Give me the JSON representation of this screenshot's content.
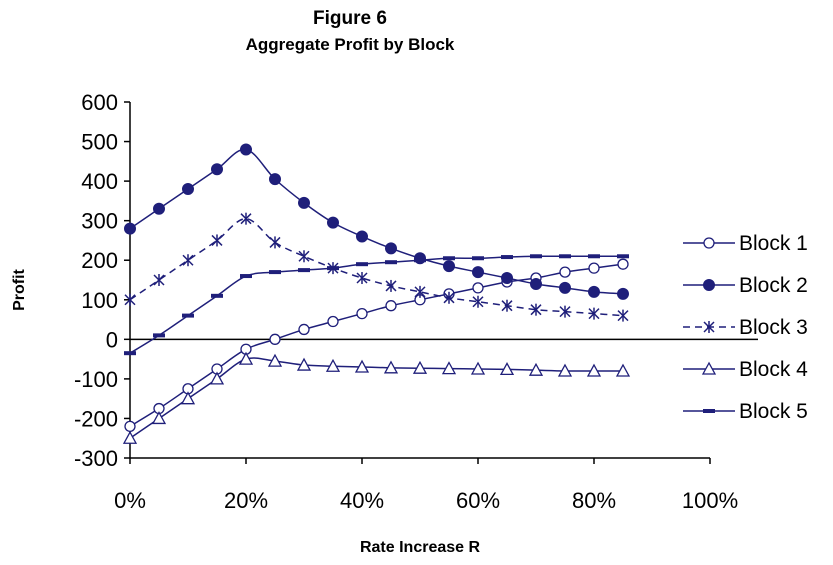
{
  "chart_data": {
    "type": "line",
    "title": "Figure 6",
    "subtitle": "Aggregate Profit by Block",
    "xlabel": "Rate Increase R",
    "ylabel": "Profit",
    "xlim": [
      0,
      100
    ],
    "ylim": [
      -300,
      600
    ],
    "x_ticks": [
      0,
      20,
      40,
      60,
      80,
      100
    ],
    "x_tick_labels": [
      "0%",
      "20%",
      "40%",
      "60%",
      "80%",
      "100%"
    ],
    "y_ticks": [
      600,
      500,
      400,
      300,
      200,
      100,
      0,
      -100,
      -200,
      -300
    ],
    "y_tick_labels": [
      "600",
      "500",
      "400",
      "300",
      "200",
      "100",
      "0",
      "-100",
      "-200",
      "-300"
    ],
    "grid": false,
    "legend_position": "right",
    "x": [
      0,
      5,
      10,
      15,
      20,
      25,
      30,
      35,
      40,
      45,
      50,
      55,
      60,
      65,
      70,
      75,
      80,
      85
    ],
    "series": [
      {
        "name": "Block 1",
        "marker": "open-circle",
        "values": [
          -220,
          -175,
          -125,
          -75,
          -25,
          0,
          25,
          45,
          65,
          85,
          100,
          115,
          130,
          145,
          155,
          170,
          180,
          190
        ]
      },
      {
        "name": "Block 2",
        "marker": "filled-circle",
        "values": [
          280,
          330,
          380,
          430,
          480,
          405,
          345,
          295,
          260,
          230,
          205,
          185,
          170,
          155,
          140,
          130,
          120,
          115
        ]
      },
      {
        "name": "Block 3",
        "marker": "asterisk",
        "dashed": true,
        "values": [
          100,
          150,
          200,
          250,
          305,
          245,
          210,
          180,
          155,
          135,
          120,
          105,
          95,
          85,
          75,
          70,
          65,
          60
        ]
      },
      {
        "name": "Block 4",
        "marker": "open-triangle",
        "values": [
          -250,
          -200,
          -150,
          -100,
          -50,
          -55,
          -65,
          -68,
          -70,
          -72,
          -73,
          -74,
          -75,
          -76,
          -78,
          -80,
          -80,
          -80
        ]
      },
      {
        "name": "Block 5",
        "marker": "dash",
        "values": [
          -35,
          10,
          60,
          110,
          160,
          170,
          175,
          180,
          190,
          195,
          200,
          205,
          205,
          208,
          210,
          210,
          210,
          210
        ]
      }
    ],
    "colors": {
      "series": "#1f1f7a",
      "axis": "#000000",
      "background": "#ffffff"
    }
  }
}
